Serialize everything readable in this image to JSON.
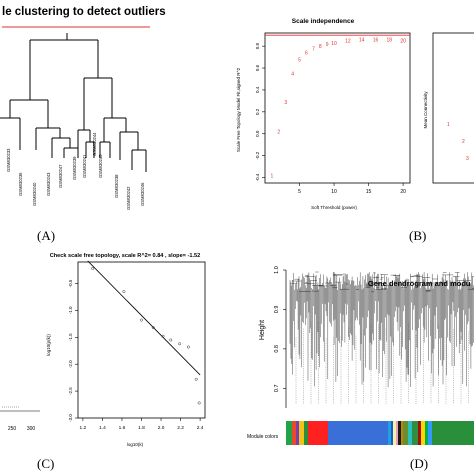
{
  "panels": {
    "A": {
      "label": "(A)",
      "title": "le clustering to detect outliers",
      "leaf_labels": [
        "GSM830233",
        "GSM830236",
        "GSM830240",
        "GSM830243",
        "GSM830247",
        "GSM830239",
        "GSM830241",
        "GSM830244",
        "GSM830245",
        "GSM830238",
        "GSM830242",
        "GSM830246"
      ]
    },
    "B": {
      "label": "(B)",
      "title": "Scale independence",
      "xlabel": "Soft Threshold (power)",
      "ylabel": "Scale Free Topology Model Fit,signed R^2",
      "ylabel2": "Mean Connectivity",
      "xticks": [
        "5",
        "10",
        "15",
        "20"
      ],
      "yticks": [
        "-0.4",
        "-0.2",
        "0.0",
        "0.2",
        "0.4",
        "0.6",
        "0.8"
      ]
    },
    "C": {
      "label": "(C)",
      "title": "Check scale free topology, scale R^2= 0.84 , slope= -1.52",
      "xlabel": "log10(k)",
      "ylabel": "log10(p(k))",
      "xticks": [
        "1.2",
        "1.4",
        "1.6",
        "1.8",
        "2.0",
        "2.2",
        "2.4"
      ],
      "yticks": [
        "-0.5",
        "-1.0",
        "-1.5",
        "-2.0",
        "-2.5",
        "-3.0"
      ],
      "left_xticks": [
        "250",
        "300"
      ]
    },
    "D": {
      "label": "(D)",
      "title": "Gene dendrogram and modu",
      "ylabel": "Height",
      "yticks": [
        "1.0",
        "0.9",
        "0.8",
        "0.7"
      ],
      "module_label": "Module colors",
      "module_colors": [
        "#22a34a",
        "#e84a2a",
        "#7a3fb0",
        "#f2c21a",
        "#2a8f3a",
        "#ff2020",
        "#3a6fd8",
        "#1aa3e0",
        "#2255cc",
        "#f7f2a0",
        "#e8a0c0",
        "#1a1a1a",
        "#b8860b",
        "#6a8f2a",
        "#28c0c0",
        "#2f8f3f",
        "#a01010",
        "#ffd700",
        "#00b050",
        "#3399ff",
        "#2a8f3a"
      ]
    }
  },
  "chart_data": [
    {
      "type": "scatter",
      "panel": "B",
      "title": "Scale independence",
      "xlabel": "Soft Threshold (power)",
      "ylabel": "Scale Free Topology Model Fit,signed R^2",
      "x": [
        1,
        2,
        3,
        4,
        5,
        6,
        7,
        8,
        9,
        10,
        12,
        14,
        16,
        18,
        20
      ],
      "y": [
        -0.38,
        0.02,
        0.29,
        0.55,
        0.68,
        0.74,
        0.78,
        0.8,
        0.82,
        0.83,
        0.85,
        0.86,
        0.86,
        0.86,
        0.85
      ],
      "xlim": [
        1,
        20
      ],
      "ylim": [
        -0.4,
        0.9
      ],
      "hline": 0.9,
      "hline_color": "#e63030",
      "point_color": "#e63030"
    },
    {
      "type": "scatter",
      "panel": "C",
      "title": "Check scale free topology, scale R^2= 0.84 , slope= -1.52",
      "xlabel": "log10(k)",
      "ylabel": "log10(p(k))",
      "x": [
        1.3,
        1.62,
        1.8,
        1.92,
        2.02,
        2.1,
        2.19,
        2.28,
        2.36,
        2.39
      ],
      "y": [
        -0.22,
        -0.65,
        -1.18,
        -1.32,
        -1.48,
        -1.55,
        -1.62,
        -1.68,
        -2.28,
        -2.72
      ],
      "fit_line": {
        "x": [
          1.25,
          2.4
        ],
        "y": [
          -0.08,
          -2.2
        ]
      },
      "xlim": [
        1.15,
        2.45
      ],
      "ylim": [
        -3.0,
        -0.1
      ]
    }
  ]
}
